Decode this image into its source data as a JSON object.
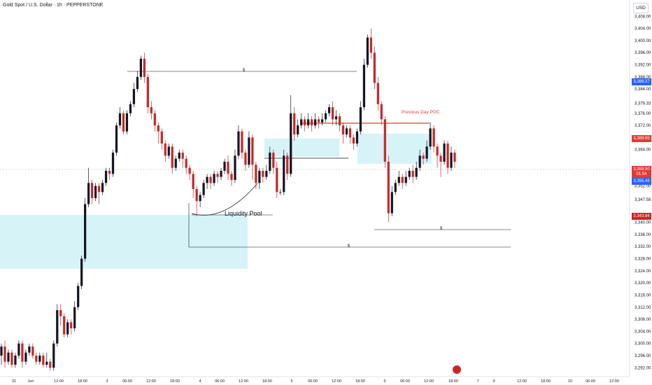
{
  "header": {
    "title": "Gold Spot / U.S. Dollar · 1h · PEPPERSTONE",
    "currency_button": "USD"
  },
  "annotations": {
    "liquidity_pool": "Liquidity Pool",
    "previous_day_poc": "Previous Day POC",
    "dollar_marker": "$"
  },
  "price_tags": [
    {
      "name": "tag-3388",
      "value": "3,388.37",
      "color": "#2962ff"
    },
    {
      "name": "tag-3369",
      "value": "3,369.65",
      "color": "#e53935"
    },
    {
      "name": "tag-last",
      "value": "3,359.50",
      "color": "#e53935"
    },
    {
      "name": "tag-countdown",
      "value": "01:54",
      "color": "#e53935"
    },
    {
      "name": "tag-3355",
      "value": "3,355.43",
      "color": "#2962ff"
    },
    {
      "name": "tag-3343",
      "value": "3,343.84",
      "color": "#c62828"
    }
  ],
  "colors": {
    "up": "#131722",
    "down": "#c62828",
    "zone": "#d6f3f8",
    "poc": "#e53935",
    "line": "#131722"
  },
  "chart_data": {
    "type": "candlestick",
    "symbol": "Gold Spot / U.S. Dollar",
    "timeframe": "1h",
    "ylim": [
      3290,
      3412
    ],
    "y_ticks": [
      "3,408.00",
      "3,404.00",
      "3,400.00",
      "3,396.00",
      "3,392.00",
      "3,388.00",
      "3,384.00",
      "3,379.33",
      "3,376.00",
      "3,372.00",
      "3,368.00",
      "3,364.00",
      "3,352.00",
      "3,347.58",
      "3,340.00",
      "3,336.00",
      "3,332.00",
      "3,328.00",
      "3,324.00",
      "3,320.00",
      "3,316.00",
      "3,312.00",
      "3,308.00",
      "3,304.00",
      "3,300.00",
      "3,296.00",
      "3,292.00"
    ],
    "x_ticks": [
      "31",
      "Jun",
      "12:00",
      "18:00",
      "3",
      "06:00",
      "12:00",
      "18:00",
      "4",
      "06:00",
      "12:00",
      "18:00",
      "5",
      "06:00",
      "12:00",
      "18:00",
      "6",
      "06:00",
      "12:00",
      "18:00",
      "7",
      "9",
      "12:00",
      "18:00",
      "10",
      "06:00",
      "12:00"
    ],
    "candles": [
      [
        3296,
        3299,
        3293,
        3300
      ],
      [
        3299,
        3294,
        3292,
        3301
      ],
      [
        3294,
        3297,
        3293,
        3298
      ],
      [
        3297,
        3293,
        3292,
        3298
      ],
      [
        3293,
        3296,
        3292,
        3297
      ],
      [
        3296,
        3300,
        3295,
        3301
      ],
      [
        3300,
        3294,
        3292,
        3301
      ],
      [
        3294,
        3297,
        3293,
        3298
      ],
      [
        3297,
        3299,
        3296,
        3300
      ],
      [
        3299,
        3296,
        3295,
        3300
      ],
      [
        3296,
        3294,
        3293,
        3297
      ],
      [
        3294,
        3296,
        3293,
        3297
      ],
      [
        3296,
        3293,
        3292,
        3297
      ],
      [
        3293,
        3294,
        3292,
        3297
      ],
      [
        3294,
        3292,
        3291,
        3295
      ],
      [
        3292,
        3300,
        3291,
        3301
      ],
      [
        3300,
        3311,
        3299,
        3313
      ],
      [
        3311,
        3309,
        3306,
        3313
      ],
      [
        3309,
        3303,
        3302,
        3310
      ],
      [
        3303,
        3307,
        3302,
        3308
      ],
      [
        3307,
        3305,
        3303,
        3308
      ],
      [
        3305,
        3312,
        3304,
        3314
      ],
      [
        3312,
        3319,
        3311,
        3320
      ],
      [
        3319,
        3328,
        3318,
        3329
      ],
      [
        3328,
        3346,
        3327,
        3348
      ],
      [
        3346,
        3353,
        3345,
        3358
      ],
      [
        3353,
        3348,
        3346,
        3354
      ],
      [
        3348,
        3352,
        3347,
        3353
      ],
      [
        3352,
        3350,
        3346,
        3353
      ],
      [
        3350,
        3353,
        3349,
        3354
      ],
      [
        3353,
        3357,
        3352,
        3358
      ],
      [
        3357,
        3356,
        3354,
        3358
      ],
      [
        3356,
        3363,
        3355,
        3364
      ],
      [
        3363,
        3372,
        3362,
        3373
      ],
      [
        3372,
        3376,
        3371,
        3378
      ],
      [
        3376,
        3370,
        3369,
        3377
      ],
      [
        3370,
        3376,
        3369,
        3377
      ],
      [
        3376,
        3379,
        3375,
        3380
      ],
      [
        3379,
        3384,
        3378,
        3386
      ],
      [
        3384,
        3388,
        3383,
        3390
      ],
      [
        3388,
        3394,
        3387,
        3395
      ],
      [
        3394,
        3388,
        3386,
        3396
      ],
      [
        3388,
        3378,
        3376,
        3389
      ],
      [
        3378,
        3376,
        3374,
        3380
      ],
      [
        3376,
        3372,
        3370,
        3377
      ],
      [
        3372,
        3370,
        3366,
        3373
      ],
      [
        3370,
        3366,
        3364,
        3371
      ],
      [
        3366,
        3362,
        3360,
        3367
      ],
      [
        3362,
        3365,
        3361,
        3366
      ],
      [
        3365,
        3358,
        3356,
        3366
      ],
      [
        3358,
        3361,
        3357,
        3362
      ],
      [
        3361,
        3363,
        3360,
        3364
      ],
      [
        3363,
        3361,
        3358,
        3364
      ],
      [
        3361,
        3358,
        3356,
        3362
      ],
      [
        3358,
        3356,
        3354,
        3359
      ],
      [
        3356,
        3351,
        3348,
        3357
      ],
      [
        3351,
        3347,
        3342,
        3352
      ],
      [
        3347,
        3349,
        3345,
        3350
      ],
      [
        3349,
        3353,
        3348,
        3354
      ],
      [
        3353,
        3355,
        3351,
        3356
      ],
      [
        3355,
        3353,
        3351,
        3356
      ],
      [
        3353,
        3356,
        3352,
        3357
      ],
      [
        3356,
        3355,
        3353,
        3357
      ],
      [
        3355,
        3357,
        3354,
        3358
      ],
      [
        3357,
        3360,
        3356,
        3361
      ],
      [
        3360,
        3356,
        3354,
        3362
      ],
      [
        3356,
        3354,
        3352,
        3357
      ],
      [
        3354,
        3362,
        3353,
        3364
      ],
      [
        3362,
        3370,
        3361,
        3372
      ],
      [
        3370,
        3363,
        3361,
        3371
      ],
      [
        3363,
        3359,
        3357,
        3364
      ],
      [
        3359,
        3368,
        3358,
        3370
      ],
      [
        3368,
        3359,
        3354,
        3369
      ],
      [
        3359,
        3353,
        3351,
        3360
      ],
      [
        3353,
        3357,
        3351,
        3358
      ],
      [
        3357,
        3355,
        3353,
        3358
      ],
      [
        3355,
        3357,
        3354,
        3359
      ],
      [
        3357,
        3363,
        3356,
        3365
      ],
      [
        3363,
        3358,
        3356,
        3364
      ],
      [
        3358,
        3350,
        3348,
        3360
      ],
      [
        3350,
        3350,
        3349,
        3351
      ],
      [
        3350,
        3362,
        3349,
        3364
      ],
      [
        3362,
        3356,
        3354,
        3363
      ],
      [
        3356,
        3376,
        3355,
        3382
      ],
      [
        3376,
        3369,
        3367,
        3378
      ],
      [
        3369,
        3372,
        3368,
        3374
      ],
      [
        3372,
        3374,
        3371,
        3376
      ],
      [
        3374,
        3372,
        3370,
        3375
      ],
      [
        3372,
        3374,
        3371,
        3376
      ],
      [
        3374,
        3372,
        3370,
        3375
      ],
      [
        3372,
        3374,
        3371,
        3376
      ],
      [
        3374,
        3373,
        3371,
        3375
      ],
      [
        3373,
        3374,
        3372,
        3376
      ],
      [
        3374,
        3376,
        3373,
        3377
      ],
      [
        3376,
        3378,
        3375,
        3379
      ],
      [
        3378,
        3374,
        3372,
        3380
      ],
      [
        3374,
        3375,
        3372,
        3377
      ],
      [
        3375,
        3372,
        3370,
        3376
      ],
      [
        3372,
        3369,
        3366,
        3373
      ],
      [
        3369,
        3371,
        3368,
        3372
      ],
      [
        3371,
        3368,
        3366,
        3372
      ],
      [
        3368,
        3366,
        3364,
        3369
      ],
      [
        3366,
        3370,
        3365,
        3371
      ],
      [
        3370,
        3378,
        3369,
        3380
      ],
      [
        3378,
        3392,
        3377,
        3394
      ],
      [
        3392,
        3401,
        3391,
        3402
      ],
      [
        3401,
        3396,
        3394,
        3404
      ],
      [
        3396,
        3386,
        3384,
        3398
      ],
      [
        3386,
        3379,
        3377,
        3388
      ],
      [
        3379,
        3374,
        3372,
        3380
      ],
      [
        3374,
        3360,
        3358,
        3375
      ],
      [
        3360,
        3343,
        3340,
        3362
      ],
      [
        3343,
        3350,
        3342,
        3352
      ],
      [
        3350,
        3353,
        3349,
        3354
      ],
      [
        3353,
        3355,
        3352,
        3357
      ],
      [
        3355,
        3353,
        3351,
        3356
      ],
      [
        3353,
        3355,
        3352,
        3357
      ],
      [
        3355,
        3357,
        3354,
        3358
      ],
      [
        3357,
        3355,
        3353,
        3359
      ],
      [
        3355,
        3358,
        3354,
        3360
      ],
      [
        3358,
        3362,
        3357,
        3364
      ],
      [
        3362,
        3361,
        3359,
        3363
      ],
      [
        3361,
        3365,
        3360,
        3367
      ],
      [
        3365,
        3371,
        3364,
        3373
      ],
      [
        3371,
        3365,
        3363,
        3372
      ],
      [
        3365,
        3362,
        3358,
        3366
      ],
      [
        3362,
        3360,
        3355,
        3363
      ],
      [
        3360,
        3366,
        3359,
        3367
      ],
      [
        3366,
        3358,
        3356,
        3367
      ],
      [
        3358,
        3363,
        3357,
        3365
      ],
      [
        3363,
        3360,
        3358,
        3364
      ]
    ]
  }
}
